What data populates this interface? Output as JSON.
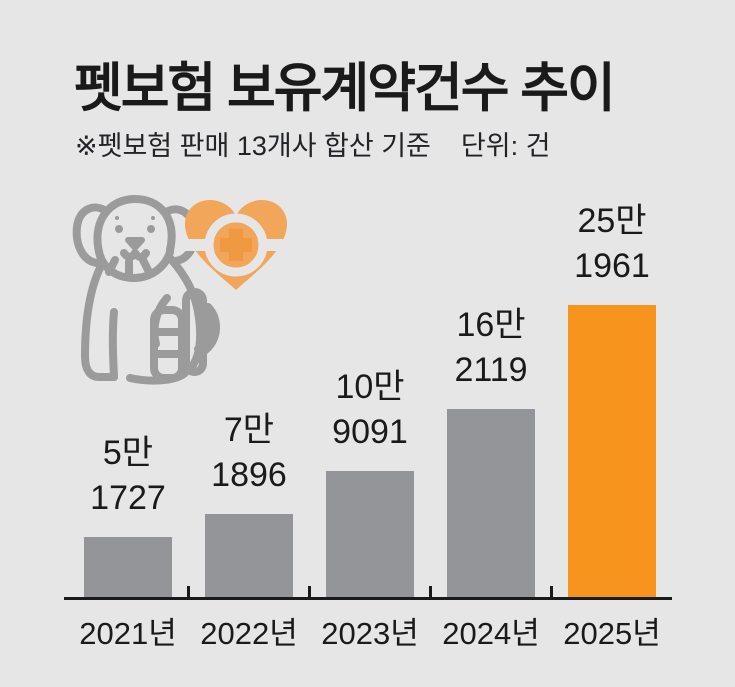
{
  "header": {
    "title": "펫보험 보유계약건수 추이",
    "note": "※펫보험 판매 13개사 합산 기준",
    "unit_label": "단위: 건"
  },
  "icons": {
    "dog": "injured-dog-icon",
    "heart": "medical-heart-icon"
  },
  "colors": {
    "background": "#e6e6e7",
    "bar_gray": "#949598",
    "bar_orange": "#f7941e",
    "heart_orange": "#f2a65a",
    "heart_cross_orange": "#ef9a43",
    "icon_gray": "#9b9b9b",
    "text": "#1a1a1a"
  },
  "chart_data": {
    "type": "bar",
    "title": "펫보험 보유계약건수 추이",
    "note": "※펫보험 판매 13개사 합산 기준",
    "unit": "건",
    "categories": [
      "2021년",
      "2022년",
      "2023년",
      "2024년",
      "2025년"
    ],
    "values": [
      51727,
      71896,
      109091,
      162119,
      251961
    ],
    "value_labels": [
      [
        "5만",
        "1727"
      ],
      [
        "7만",
        "1896"
      ],
      [
        "10만",
        "9091"
      ],
      [
        "16만",
        "2119"
      ],
      [
        "25만",
        "1961"
      ]
    ],
    "bar_colors": [
      "#949598",
      "#949598",
      "#949598",
      "#949598",
      "#f7941e"
    ],
    "highlight_index": 4,
    "ylim": [
      0,
      260000
    ],
    "grid": false,
    "legend": false
  }
}
